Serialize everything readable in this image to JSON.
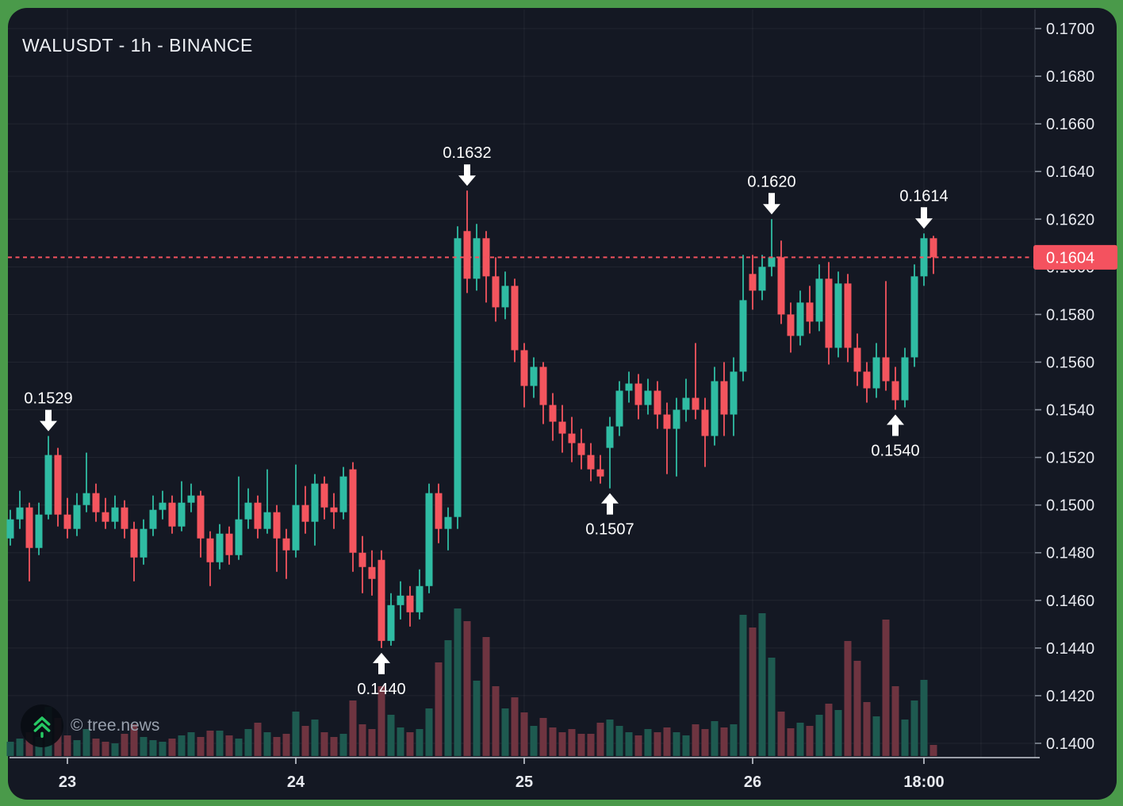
{
  "header": {
    "title": "WALUSDT - 1h - BINANCE"
  },
  "watermark": {
    "text": "© tree.news",
    "icon": "double-chevron-up-icon"
  },
  "colors": {
    "frame": "#4a9a4a",
    "background": "#141823",
    "up": "#2fbca3",
    "down": "#f4555e",
    "volume_up": "#1e5a50",
    "volume_down": "#6e3440",
    "grid": "rgba(255,255,255,0.06)",
    "axis_line": "#363b47",
    "time_axis_line": "#c9cdd6",
    "axis_text": "#e8eaf0",
    "price_line": "#f4525f",
    "price_tag_bg": "#f4525f",
    "price_tag_text": "#ffffff",
    "annotation_text": "#ffffff",
    "watermark_icon": "#26c964"
  },
  "price_axis": {
    "labels": [
      "0.1700",
      "0.1680",
      "0.1660",
      "0.1640",
      "0.1620",
      "0.1600",
      "0.1580",
      "0.1560",
      "0.1540",
      "0.1520",
      "0.1500",
      "0.1480",
      "0.1460",
      "0.1440",
      "0.1420",
      "0.1400"
    ]
  },
  "time_axis": {
    "ticks": [
      {
        "label": "23",
        "index": 6
      },
      {
        "label": "24",
        "index": 30
      },
      {
        "label": "25",
        "index": 54
      },
      {
        "label": "26",
        "index": 78
      },
      {
        "label": "18:00",
        "index": 96
      }
    ],
    "extra_gridline_index": 102
  },
  "price_line": {
    "value": 0.1604,
    "label": "0.1604"
  },
  "annotations": [
    {
      "label": "0.1529",
      "price": 0.1529,
      "candle_index": 4,
      "direction": "down"
    },
    {
      "label": "0.1632",
      "price": 0.1632,
      "candle_index": 48,
      "direction": "down"
    },
    {
      "label": "0.1620",
      "price": 0.162,
      "candle_index": 80,
      "direction": "down"
    },
    {
      "label": "0.1614",
      "price": 0.1614,
      "candle_index": 96,
      "direction": "down"
    },
    {
      "label": "0.1440",
      "price": 0.144,
      "candle_index": 39,
      "direction": "up"
    },
    {
      "label": "0.1507",
      "price": 0.1507,
      "candle_index": 63,
      "direction": "up"
    },
    {
      "label": "0.1540",
      "price": 0.154,
      "candle_index": 93,
      "direction": "up"
    }
  ],
  "chart_data": {
    "type": "candlestick",
    "symbol": "WALUSDT",
    "interval": "1h",
    "exchange": "BINANCE",
    "last_price": 0.1604,
    "ylim": [
      0.1394,
      0.1709
    ],
    "price_step": 0.002,
    "grid": true,
    "fields": [
      "open",
      "high",
      "low",
      "close",
      "volume_relative"
    ],
    "candles": [
      [
        0.1486,
        0.1498,
        0.1483,
        0.1494,
        18
      ],
      [
        0.1494,
        0.1506,
        0.149,
        0.1499,
        22
      ],
      [
        0.1499,
        0.1501,
        0.1468,
        0.1482,
        30
      ],
      [
        0.1482,
        0.1501,
        0.1479,
        0.1496,
        24
      ],
      [
        0.1496,
        0.1529,
        0.1494,
        0.1521,
        62
      ],
      [
        0.1521,
        0.1524,
        0.1491,
        0.1496,
        48
      ],
      [
        0.1496,
        0.1503,
        0.1486,
        0.149,
        26
      ],
      [
        0.149,
        0.1505,
        0.1487,
        0.15,
        20
      ],
      [
        0.15,
        0.1522,
        0.1497,
        0.1505,
        34
      ],
      [
        0.1505,
        0.1509,
        0.1493,
        0.1497,
        22
      ],
      [
        0.1497,
        0.1503,
        0.149,
        0.1493,
        18
      ],
      [
        0.1493,
        0.1504,
        0.149,
        0.1499,
        16
      ],
      [
        0.1499,
        0.1502,
        0.1486,
        0.149,
        28
      ],
      [
        0.149,
        0.1493,
        0.1468,
        0.1478,
        40
      ],
      [
        0.1478,
        0.1494,
        0.1475,
        0.149,
        24
      ],
      [
        0.149,
        0.1504,
        0.1487,
        0.1498,
        20
      ],
      [
        0.1498,
        0.1506,
        0.1494,
        0.1501,
        18
      ],
      [
        0.1501,
        0.1504,
        0.1488,
        0.1491,
        22
      ],
      [
        0.1491,
        0.151,
        0.1489,
        0.1501,
        26
      ],
      [
        0.1501,
        0.1509,
        0.1497,
        0.1504,
        30
      ],
      [
        0.1504,
        0.1506,
        0.1478,
        0.1486,
        24
      ],
      [
        0.1486,
        0.1489,
        0.1466,
        0.1476,
        32
      ],
      [
        0.1476,
        0.1492,
        0.1473,
        0.1488,
        32
      ],
      [
        0.1488,
        0.1491,
        0.1475,
        0.1479,
        26
      ],
      [
        0.1479,
        0.1512,
        0.1477,
        0.1494,
        22
      ],
      [
        0.1494,
        0.1507,
        0.149,
        0.1501,
        34
      ],
      [
        0.1501,
        0.1504,
        0.1486,
        0.149,
        42
      ],
      [
        0.149,
        0.1515,
        0.1488,
        0.1497,
        30
      ],
      [
        0.1497,
        0.15,
        0.1472,
        0.1486,
        24
      ],
      [
        0.1486,
        0.149,
        0.1469,
        0.1481,
        28
      ],
      [
        0.1481,
        0.1517,
        0.1478,
        0.15,
        56
      ],
      [
        0.15,
        0.1508,
        0.1488,
        0.1493,
        38
      ],
      [
        0.1493,
        0.1513,
        0.1483,
        0.1509,
        46
      ],
      [
        0.1509,
        0.1512,
        0.1494,
        0.1499,
        30
      ],
      [
        0.1499,
        0.1505,
        0.149,
        0.1497,
        24
      ],
      [
        0.1497,
        0.1516,
        0.1494,
        0.1512,
        28
      ],
      [
        0.1515,
        0.1518,
        0.1472,
        0.148,
        70
      ],
      [
        0.148,
        0.1487,
        0.1463,
        0.1474,
        40
      ],
      [
        0.1474,
        0.1481,
        0.1462,
        0.1469,
        34
      ],
      [
        0.1477,
        0.1481,
        0.144,
        0.1443,
        88
      ],
      [
        0.1443,
        0.1463,
        0.1441,
        0.1458,
        52
      ],
      [
        0.1458,
        0.1468,
        0.1452,
        0.1462,
        36
      ],
      [
        0.1462,
        0.1466,
        0.1449,
        0.1455,
        30
      ],
      [
        0.1455,
        0.1473,
        0.1452,
        0.1466,
        34
      ],
      [
        0.1466,
        0.1509,
        0.1463,
        0.1505,
        60
      ],
      [
        0.1505,
        0.1509,
        0.1484,
        0.149,
        118
      ],
      [
        0.149,
        0.1499,
        0.1481,
        0.1495,
        146
      ],
      [
        0.1495,
        0.1617,
        0.149,
        0.1612,
        186
      ],
      [
        0.1615,
        0.1632,
        0.1589,
        0.1595,
        170
      ],
      [
        0.1595,
        0.1618,
        0.159,
        0.1612,
        95
      ],
      [
        0.1612,
        0.1615,
        0.1585,
        0.1596,
        150
      ],
      [
        0.1596,
        0.1604,
        0.1577,
        0.1583,
        88
      ],
      [
        0.1583,
        0.1598,
        0.1578,
        0.1592,
        60
      ],
      [
        0.1592,
        0.1595,
        0.156,
        0.1565,
        74
      ],
      [
        0.1565,
        0.1568,
        0.1541,
        0.155,
        55
      ],
      [
        0.155,
        0.1562,
        0.1545,
        0.1558,
        38
      ],
      [
        0.1558,
        0.156,
        0.1534,
        0.1542,
        48
      ],
      [
        0.1542,
        0.1547,
        0.1527,
        0.1535,
        36
      ],
      [
        0.1535,
        0.1542,
        0.1522,
        0.153,
        30
      ],
      [
        0.153,
        0.1537,
        0.1518,
        0.1526,
        34
      ],
      [
        0.1526,
        0.1532,
        0.1515,
        0.1521,
        28
      ],
      [
        0.1521,
        0.1526,
        0.151,
        0.1515,
        28
      ],
      [
        0.1515,
        0.1521,
        0.1509,
        0.1512,
        42
      ],
      [
        0.1524,
        0.1537,
        0.1507,
        0.1533,
        46
      ],
      [
        0.1533,
        0.1552,
        0.1529,
        0.1548,
        38
      ],
      [
        0.1548,
        0.1556,
        0.1543,
        0.1551,
        30
      ],
      [
        0.1551,
        0.1555,
        0.1536,
        0.1542,
        26
      ],
      [
        0.1542,
        0.1553,
        0.1538,
        0.1548,
        34
      ],
      [
        0.1548,
        0.1552,
        0.1532,
        0.1538,
        30
      ],
      [
        0.1538,
        0.1543,
        0.1513,
        0.1532,
        36
      ],
      [
        0.1532,
        0.1545,
        0.1512,
        0.154,
        30
      ],
      [
        0.154,
        0.1553,
        0.1535,
        0.1545,
        26
      ],
      [
        0.1545,
        0.1568,
        0.1536,
        0.154,
        40
      ],
      [
        0.154,
        0.1545,
        0.1516,
        0.1529,
        34
      ],
      [
        0.1529,
        0.1558,
        0.1525,
        0.1552,
        44
      ],
      [
        0.1552,
        0.156,
        0.1529,
        0.1538,
        36
      ],
      [
        0.1538,
        0.1562,
        0.1529,
        0.1556,
        40
      ],
      [
        0.1556,
        0.1605,
        0.1552,
        0.1586,
        178
      ],
      [
        0.1597,
        0.1605,
        0.1582,
        0.159,
        162
      ],
      [
        0.159,
        0.1605,
        0.1586,
        0.16,
        180
      ],
      [
        0.16,
        0.162,
        0.1596,
        0.1604,
        124
      ],
      [
        0.1604,
        0.1611,
        0.1576,
        0.158,
        56
      ],
      [
        0.158,
        0.1585,
        0.1564,
        0.1571,
        35
      ],
      [
        0.1571,
        0.159,
        0.1567,
        0.1585,
        42
      ],
      [
        0.1585,
        0.1592,
        0.1572,
        0.1577,
        38
      ],
      [
        0.1577,
        0.1601,
        0.1573,
        0.1595,
        52
      ],
      [
        0.1595,
        0.1602,
        0.1559,
        0.1566,
        66
      ],
      [
        0.1566,
        0.1598,
        0.1562,
        0.1593,
        58
      ],
      [
        0.1593,
        0.1597,
        0.156,
        0.1566,
        145
      ],
      [
        0.1566,
        0.1572,
        0.155,
        0.1556,
        120
      ],
      [
        0.1556,
        0.156,
        0.1543,
        0.1549,
        68
      ],
      [
        0.1549,
        0.1568,
        0.1545,
        0.1562,
        50
      ],
      [
        0.1562,
        0.1594,
        0.1548,
        0.1552,
        172
      ],
      [
        0.1552,
        0.1558,
        0.154,
        0.1544,
        88
      ],
      [
        0.1544,
        0.1566,
        0.1541,
        0.1562,
        46
      ],
      [
        0.1562,
        0.1601,
        0.1558,
        0.1596,
        70
      ],
      [
        0.1596,
        0.1614,
        0.1592,
        0.1612,
        96
      ],
      [
        0.1612,
        0.1613,
        0.1597,
        0.1604,
        14
      ]
    ]
  }
}
